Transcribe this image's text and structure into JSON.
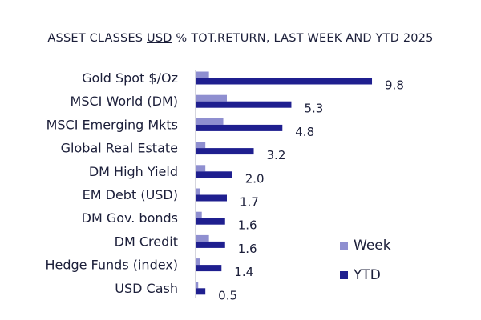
{
  "chart_data": {
    "type": "bar",
    "orientation": "horizontal",
    "title_parts": [
      "ASSET CLASSES ",
      "USD",
      " % TOT.RETURN, LAST WEEK AND YTD 2025"
    ],
    "categories": [
      "Gold Spot   $/Oz",
      "MSCI World (DM)",
      "MSCI Emerging Mkts",
      "Global Real Estate",
      "DM High Yield",
      "EM Debt (USD)",
      "DM Gov. bonds",
      "DM Credit",
      "Hedge Funds (index)",
      "USD Cash"
    ],
    "series": [
      {
        "name": "Week",
        "color": "#8f8fd0",
        "values": [
          0.7,
          1.7,
          1.5,
          0.5,
          0.5,
          0.2,
          0.3,
          0.7,
          0.2,
          0.1
        ]
      },
      {
        "name": "YTD",
        "color": "#1f1f8f",
        "values": [
          9.8,
          5.3,
          4.8,
          3.2,
          2.0,
          1.7,
          1.6,
          1.6,
          1.4,
          0.5
        ]
      }
    ],
    "data_labels": [
      "9.8",
      "5.3",
      "4.8",
      "3.2",
      "2.0",
      "1.7",
      "1.6",
      "1.6",
      "1.4",
      "0.5"
    ],
    "xlim": [
      0,
      10
    ],
    "grid": false,
    "legend_position": "bottom-right",
    "axis_line_color": "#c8c8d4"
  }
}
